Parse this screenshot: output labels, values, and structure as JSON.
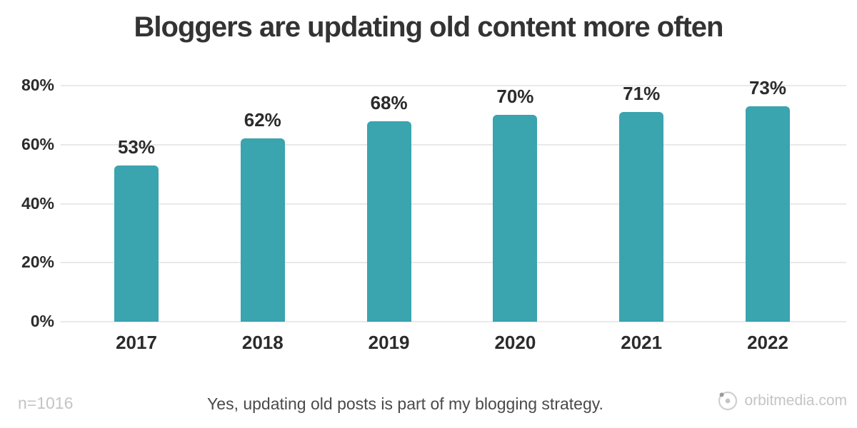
{
  "title": "Bloggers are updating old content more often",
  "footer": {
    "sample_size": "n=1016",
    "note": "Yes, updating old posts is part of my blogging strategy.",
    "brand": "orbitmedia.com"
  },
  "colors": {
    "bar": "#3AA4AF",
    "gridline": "#E9E9E9",
    "title_text": "#333333",
    "axis_text": "#2B2B2B",
    "note_text": "#4A4A4A",
    "muted_text": "#C4C4C4",
    "logo_ring": "#CFCFCF",
    "logo_dot": "#C4C4C4",
    "logo_orbit_dot": "#9A9A9A"
  },
  "chart_data": {
    "type": "bar",
    "categories": [
      "2017",
      "2018",
      "2019",
      "2020",
      "2021",
      "2022"
    ],
    "values": [
      53,
      62,
      68,
      70,
      71,
      73
    ],
    "value_labels": [
      "53%",
      "62%",
      "68%",
      "70%",
      "71%",
      "73%"
    ],
    "title": "Bloggers are updating old content more often",
    "xlabel": "",
    "ylabel": "",
    "ylim": [
      0,
      80
    ],
    "yticks": [
      0,
      20,
      40,
      60,
      80
    ],
    "ytick_labels": [
      "0%",
      "20%",
      "40%",
      "60%",
      "80%"
    ],
    "grid": "horizontal",
    "legend": "none"
  }
}
